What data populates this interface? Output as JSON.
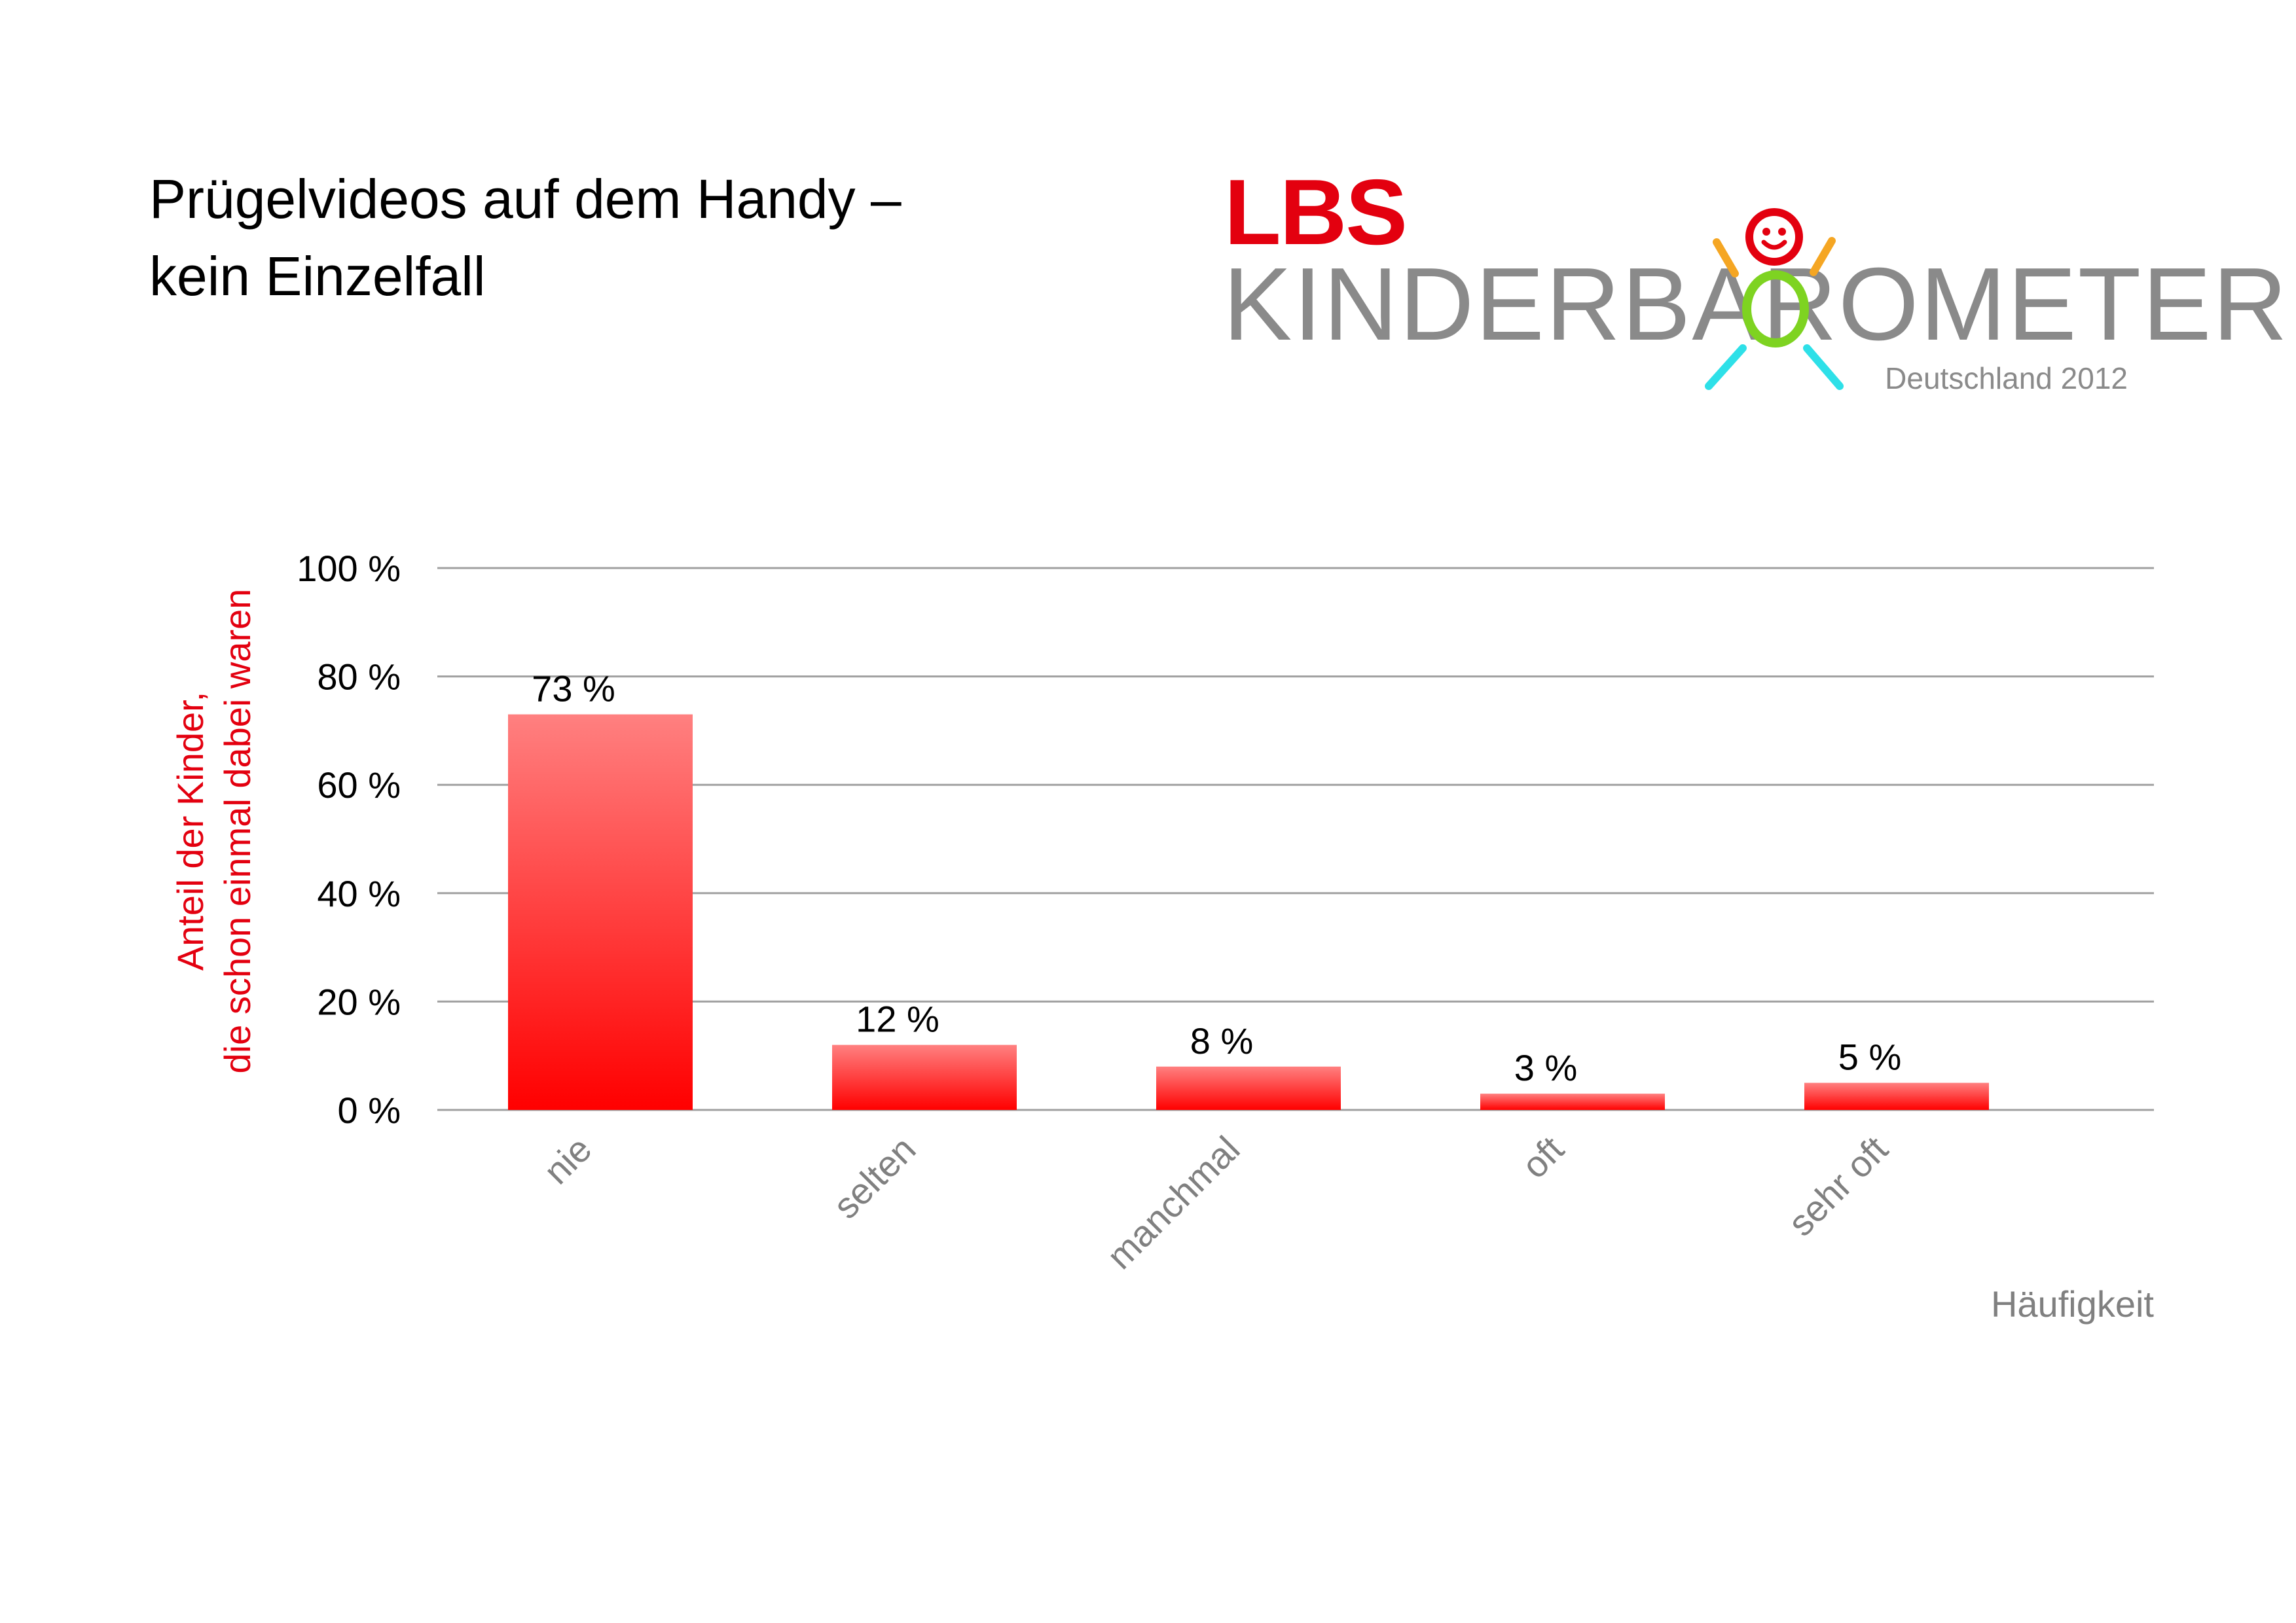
{
  "title_lines": [
    "Prügelvideos auf dem Handy –",
    "kein Einzelfall"
  ],
  "logo": {
    "brand": "LBS",
    "wordmark": "KINDERBAROMETER",
    "subtitle": "Deutschland 2012",
    "colors": {
      "brand": "#e3000f",
      "wordmark": "#8a8a8a",
      "head": "#e3000f",
      "arms": "#f5a623",
      "body": "#7ed321",
      "legs": "#2ee0e8"
    }
  },
  "chart_data": {
    "type": "bar",
    "categories": [
      "nie",
      "selten",
      "manchmal",
      "oft",
      "sehr oft"
    ],
    "values": [
      73,
      12,
      8,
      3,
      5
    ],
    "data_labels": [
      "73 %",
      "12 %",
      "8 %",
      "3 %",
      "5 %"
    ],
    "ylabel_lines": [
      "Anteil der Kinder,",
      "die schon einmal dabei waren"
    ],
    "xlabel": "Häufigkeit",
    "ylim": [
      0,
      100
    ],
    "yticks": [
      0,
      20,
      40,
      60,
      80,
      100
    ],
    "ytick_labels": [
      "0 %",
      "20 %",
      "40 %",
      "60 %",
      "80 %",
      "100 %"
    ],
    "grid": true,
    "colors": {
      "bar_top": "#ff8080",
      "bar_bottom": "#ff0000",
      "ylabel": "#e3000f",
      "xlabel": "#808080",
      "category": "#808080",
      "grid": "#a0a0a0"
    }
  }
}
